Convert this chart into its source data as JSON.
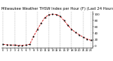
{
  "title": "Milwaukee Weather THSW Index per Hour (F) (Last 24 Hours)",
  "hours": [
    0,
    1,
    2,
    3,
    4,
    5,
    6,
    7,
    8,
    9,
    10,
    11,
    12,
    13,
    14,
    15,
    16,
    17,
    18,
    19,
    20,
    21,
    22,
    23
  ],
  "values": [
    5,
    4,
    3,
    3,
    2,
    2,
    3,
    5,
    30,
    52,
    72,
    90,
    98,
    100,
    99,
    93,
    80,
    65,
    52,
    43,
    35,
    28,
    22,
    18
  ],
  "ylim": [
    -5,
    110
  ],
  "line_color": "#cc0000",
  "marker_color": "#000000",
  "grid_color": "#888888",
  "bg_color": "#ffffff",
  "title_color": "#000000",
  "title_fontsize": 3.8,
  "tick_fontsize": 3.0,
  "vgrid_positions": [
    0,
    3,
    6,
    9,
    12,
    15,
    18,
    21,
    23
  ],
  "ytick_positions": [
    0,
    20,
    40,
    60,
    80,
    100
  ],
  "ytick_labels": [
    "0",
    "20",
    "40",
    "60",
    "80",
    "100"
  ]
}
